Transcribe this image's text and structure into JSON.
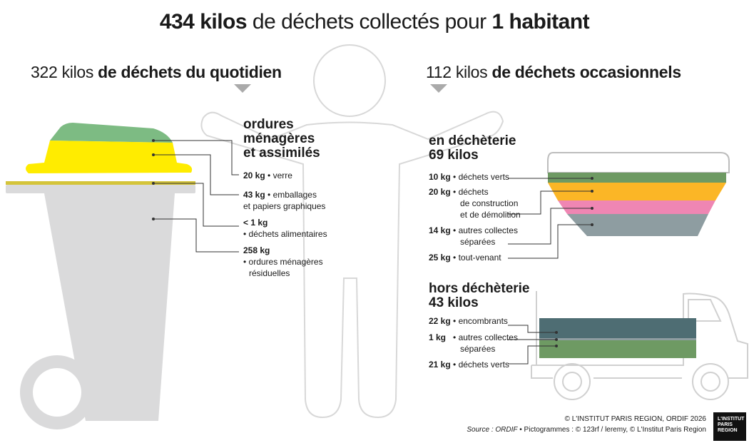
{
  "title": {
    "total": "434 kilos",
    "middle": "de déchets collectés pour",
    "per": "1 habitant"
  },
  "left_section": {
    "amount": "322 kilos",
    "label": "de déchets du quotidien"
  },
  "right_section": {
    "amount": "112 kilos",
    "label": "de déchets occasionnels"
  },
  "household": {
    "heading": [
      "ordures",
      "ménagères",
      "et assimilés"
    ],
    "items": [
      {
        "value": "20 kg",
        "lines": [
          "• verre"
        ],
        "color": "#7dbb83"
      },
      {
        "value": "43 kg",
        "lines": [
          "• emballages",
          "et papiers graphiques"
        ],
        "color": "#ffec00"
      },
      {
        "value": "< 1 kg",
        "lines": [
          "• déchets alimentaires"
        ],
        "color": "#d4c43a"
      },
      {
        "value": "258 kg",
        "lines": [
          "• ordures ménagères",
          "résiduelles"
        ],
        "color": "#dadadb"
      }
    ]
  },
  "decheterie": {
    "heading": [
      "en déchèterie",
      "69 kilos"
    ],
    "items": [
      {
        "value": "10 kg",
        "lines": [
          "• déchets verts"
        ],
        "color": "#6e9a63"
      },
      {
        "value": "20 kg",
        "lines": [
          "• déchets",
          "de construction",
          "et de démolition"
        ],
        "color": "#fbb626"
      },
      {
        "value": "14 kg",
        "lines": [
          "• autres collectes",
          "séparées"
        ],
        "color": "#ef86b3"
      },
      {
        "value": "25 kg",
        "lines": [
          "• tout-venant"
        ],
        "color": "#8e9da1"
      }
    ]
  },
  "hors_decheterie": {
    "heading": [
      "hors déchèterie",
      "43 kilos"
    ],
    "items": [
      {
        "value": "22 kg",
        "lines": [
          "• encombrants"
        ],
        "color": "#4e6d73"
      },
      {
        "value": "1 kg",
        "lines": [
          "• autres collectes",
          "séparées"
        ],
        "color": "#8e9da1"
      },
      {
        "value": "21 kg",
        "lines": [
          "• déchets verts"
        ],
        "color": "#6e9a63"
      }
    ]
  },
  "credits": {
    "copyright": "© L'INSTITUT PARIS REGION, ORDIF 2026",
    "source_label": "Source : ORDIF",
    "pictos": " • Pictogrammes : © 123rf / leremy, © L'Institut Paris Region"
  },
  "logo": {
    "lines": [
      "L'INSTITUT",
      "PARIS",
      "REGION"
    ]
  }
}
